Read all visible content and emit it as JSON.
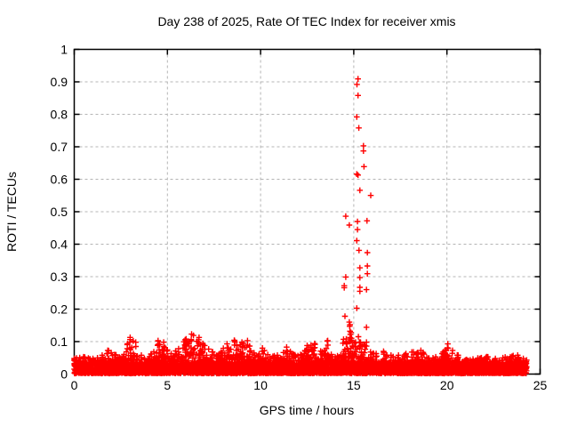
{
  "chart_data": {
    "type": "scatter",
    "title": "Day 238 of 2025, Rate Of TEC Index for receiver xmis",
    "xlabel": "GPS time / hours",
    "ylabel": "ROTI / TECUs",
    "xlim": [
      0,
      25
    ],
    "ylim": [
      0,
      1
    ],
    "x_ticks": [
      0,
      5,
      10,
      15,
      20,
      25
    ],
    "x_tick_labels": [
      "0",
      "5",
      "10",
      "15",
      "20",
      "25"
    ],
    "y_ticks": [
      0,
      0.1,
      0.2,
      0.3,
      0.4,
      0.5,
      0.6,
      0.7,
      0.8,
      0.9,
      1
    ],
    "y_tick_labels": [
      "0",
      "0.1",
      "0.2",
      "0.3",
      "0.4",
      "0.5",
      "0.6",
      "0.7",
      "0.8",
      "0.9",
      "1"
    ],
    "grid": true,
    "legend": "none",
    "marker": "plus",
    "marker_color": "#ff0000",
    "grid_color": "#b4b4b4",
    "border_color": "#000000",
    "baseline_band": {
      "comment_visible_structure": "dense band of red plus markers from 0 to ~24.3 h, values mostly 0.00-0.05 with jagged top",
      "x_start": 0,
      "x_end": 24.28,
      "floor": 0.002,
      "core_top": 0.035,
      "envelope": [
        [
          0.0,
          0.05
        ],
        [
          0.5,
          0.055
        ],
        [
          1.0,
          0.05
        ],
        [
          1.5,
          0.06
        ],
        [
          1.8,
          0.075
        ],
        [
          2.2,
          0.06
        ],
        [
          2.6,
          0.055
        ],
        [
          3.0,
          0.115
        ],
        [
          3.3,
          0.1
        ],
        [
          3.6,
          0.06
        ],
        [
          4.0,
          0.05
        ],
        [
          4.5,
          0.105
        ],
        [
          4.8,
          0.1
        ],
        [
          5.2,
          0.065
        ],
        [
          5.6,
          0.08
        ],
        [
          6.0,
          0.11
        ],
        [
          6.3,
          0.125
        ],
        [
          6.7,
          0.115
        ],
        [
          7.0,
          0.09
        ],
        [
          7.4,
          0.07
        ],
        [
          7.8,
          0.065
        ],
        [
          8.2,
          0.095
        ],
        [
          8.6,
          0.105
        ],
        [
          9.0,
          0.1
        ],
        [
          9.3,
          0.105
        ],
        [
          9.7,
          0.06
        ],
        [
          10.1,
          0.082
        ],
        [
          10.5,
          0.055
        ],
        [
          10.9,
          0.06
        ],
        [
          11.4,
          0.085
        ],
        [
          11.8,
          0.06
        ],
        [
          12.2,
          0.06
        ],
        [
          12.5,
          0.09
        ],
        [
          12.9,
          0.096
        ],
        [
          13.3,
          0.07
        ],
        [
          13.6,
          0.105
        ],
        [
          14.0,
          0.055
        ],
        [
          14.3,
          0.06
        ],
        [
          14.6,
          0.11
        ],
        [
          14.85,
          0.13
        ],
        [
          15.1,
          0.1
        ],
        [
          15.35,
          0.1
        ],
        [
          15.6,
          0.09
        ],
        [
          15.9,
          0.07
        ],
        [
          16.2,
          0.065
        ],
        [
          16.6,
          0.072
        ],
        [
          17.0,
          0.06
        ],
        [
          17.4,
          0.06
        ],
        [
          17.8,
          0.065
        ],
        [
          18.2,
          0.07
        ],
        [
          18.6,
          0.075
        ],
        [
          19.0,
          0.05
        ],
        [
          19.4,
          0.055
        ],
        [
          19.8,
          0.07
        ],
        [
          20.05,
          0.095
        ],
        [
          20.3,
          0.075
        ],
        [
          20.6,
          0.06
        ],
        [
          21.0,
          0.045
        ],
        [
          21.4,
          0.048
        ],
        [
          21.8,
          0.05
        ],
        [
          22.2,
          0.055
        ],
        [
          22.6,
          0.05
        ],
        [
          23.0,
          0.052
        ],
        [
          23.4,
          0.055
        ],
        [
          23.8,
          0.06
        ],
        [
          24.1,
          0.05
        ],
        [
          24.28,
          0.045
        ]
      ]
    },
    "spike_points": [
      [
        15.23,
        0.909
      ],
      [
        15.17,
        0.892
      ],
      [
        15.23,
        0.858
      ],
      [
        15.16,
        0.792
      ],
      [
        15.27,
        0.758
      ],
      [
        15.52,
        0.703
      ],
      [
        15.52,
        0.687
      ],
      [
        15.55,
        0.639
      ],
      [
        15.16,
        0.616
      ],
      [
        15.23,
        0.613
      ],
      [
        15.33,
        0.566
      ],
      [
        15.91,
        0.55
      ],
      [
        14.57,
        0.486
      ],
      [
        15.71,
        0.472
      ],
      [
        15.2,
        0.47
      ],
      [
        14.76,
        0.459
      ],
      [
        15.2,
        0.445
      ],
      [
        15.16,
        0.411
      ],
      [
        15.28,
        0.381
      ],
      [
        15.73,
        0.374
      ],
      [
        15.73,
        0.333
      ],
      [
        15.33,
        0.327
      ],
      [
        15.73,
        0.309
      ],
      [
        14.57,
        0.299
      ],
      [
        15.33,
        0.297
      ],
      [
        14.49,
        0.272
      ],
      [
        14.49,
        0.266
      ],
      [
        15.33,
        0.267
      ],
      [
        15.68,
        0.26
      ],
      [
        15.33,
        0.255
      ],
      [
        15.16,
        0.203
      ],
      [
        14.53,
        0.178
      ],
      [
        14.76,
        0.16
      ],
      [
        14.8,
        0.152
      ],
      [
        14.78,
        0.147
      ],
      [
        15.68,
        0.144
      ],
      [
        14.8,
        0.132
      ],
      [
        14.82,
        0.122
      ],
      [
        14.8,
        0.113
      ],
      [
        14.84,
        0.104
      ],
      [
        14.45,
        0.107
      ],
      [
        14.42,
        0.095
      ],
      [
        15.25,
        0.115
      ],
      [
        15.3,
        0.098
      ],
      [
        15.35,
        0.088
      ],
      [
        15.68,
        0.098
      ],
      [
        15.68,
        0.086
      ],
      [
        14.6,
        0.093
      ],
      [
        15.05,
        0.095
      ],
      [
        15.1,
        0.085
      ]
    ]
  }
}
